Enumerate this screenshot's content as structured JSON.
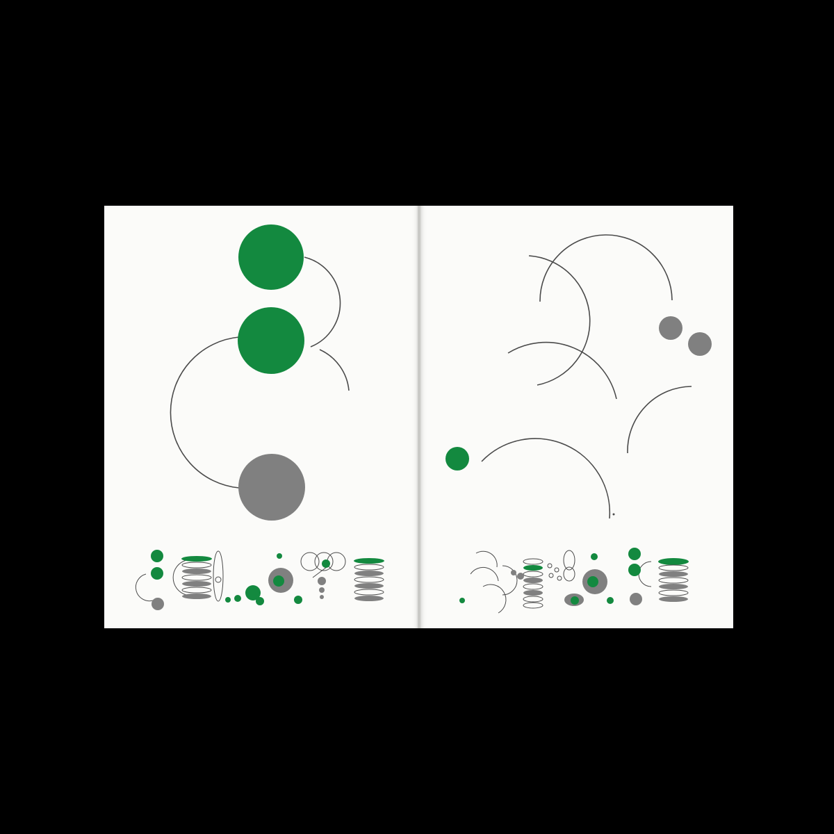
{
  "colors": {
    "background": "#000000",
    "paper": "#fbfbf9",
    "green": "#13893f",
    "grey": "#808080",
    "line": "#4a4a4a"
  },
  "spread": {
    "pages": [
      "left-page",
      "right-page"
    ]
  }
}
